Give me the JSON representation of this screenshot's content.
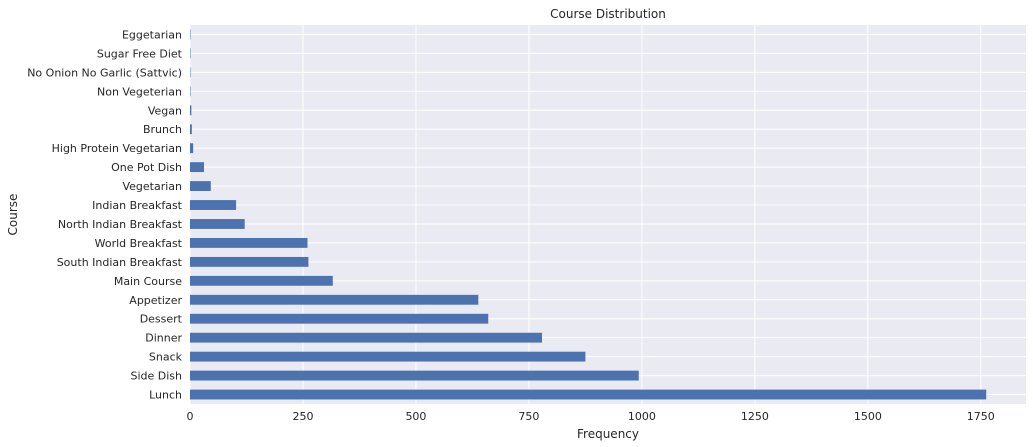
{
  "chart_data": {
    "type": "bar",
    "orientation": "horizontal",
    "title": "Course Distribution",
    "xlabel": "Frequency",
    "ylabel": "Course",
    "categories": [
      "Lunch",
      "Side Dish",
      "Snack",
      "Dinner",
      "Dessert",
      "Appetizer",
      "Main Course",
      "South Indian Breakfast",
      "World Breakfast",
      "North Indian Breakfast",
      "Indian Breakfast",
      "Vegetarian",
      "One Pot Dish",
      "High Protein Vegetarian",
      "Brunch",
      "Vegan",
      "Non Vegeterian",
      "No Onion No Garlic (Sattvic)",
      "Sugar Free Diet",
      "Eggetarian"
    ],
    "values": [
      1762,
      993,
      875,
      779,
      660,
      638,
      316,
      262,
      260,
      121,
      102,
      46,
      31,
      7,
      4,
      3,
      1,
      1,
      1,
      1
    ],
    "xlim": [
      0,
      1850
    ],
    "xticks": [
      0,
      250,
      500,
      750,
      1000,
      1250,
      1500,
      1750
    ],
    "xtick_labels": [
      "0",
      "250",
      "500",
      "750",
      "1000",
      "1250",
      "1500",
      "1750"
    ],
    "grid": true,
    "colors": {
      "bar": "#4c72b0",
      "background": "#eaeaf2",
      "grid": "#ffffff"
    }
  }
}
